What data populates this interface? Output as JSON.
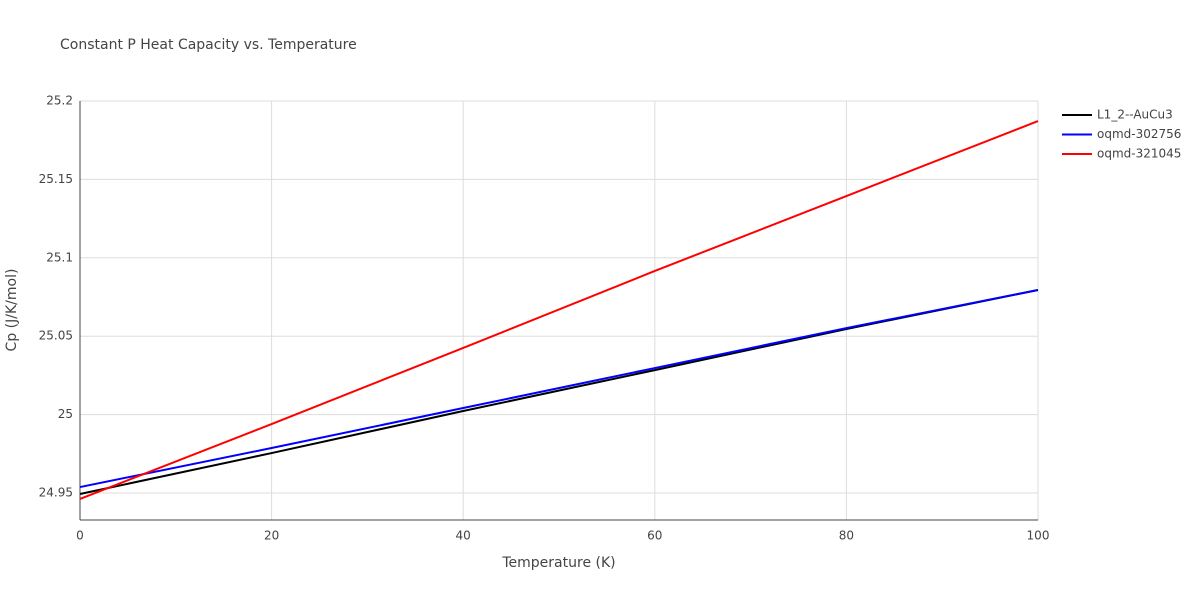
{
  "chart_data": {
    "type": "line",
    "title": "Constant P Heat Capacity vs. Temperature",
    "x_label": "Temperature (K)",
    "y_label": "Cp (J/K/mol)",
    "x": [
      0,
      20,
      40,
      60,
      80,
      100
    ],
    "series": [
      {
        "name": "L1_2--AuCu3",
        "color": "#000000",
        "values": [
          24.9494,
          24.9755,
          25.0023,
          25.0284,
          25.0546,
          25.0795
        ]
      },
      {
        "name": "oqmd-302756",
        "color": "#0000ff",
        "values": [
          24.9538,
          24.9787,
          25.0042,
          25.0297,
          25.0552,
          25.0795
        ]
      },
      {
        "name": "oqmd-321045",
        "color": "#ff0000",
        "values": [
          24.9462,
          24.994,
          25.0425,
          25.0916,
          25.1394,
          25.1872
        ]
      }
    ],
    "xlim": [
      0,
      100
    ],
    "xticks": [
      0,
      20,
      40,
      60,
      80,
      100
    ],
    "ylim": [
      24.9328,
      25.2
    ],
    "yticks": [
      24.95,
      25,
      25.05,
      25.1,
      25.15,
      25.2
    ],
    "grid": true,
    "legend": "top-right"
  }
}
